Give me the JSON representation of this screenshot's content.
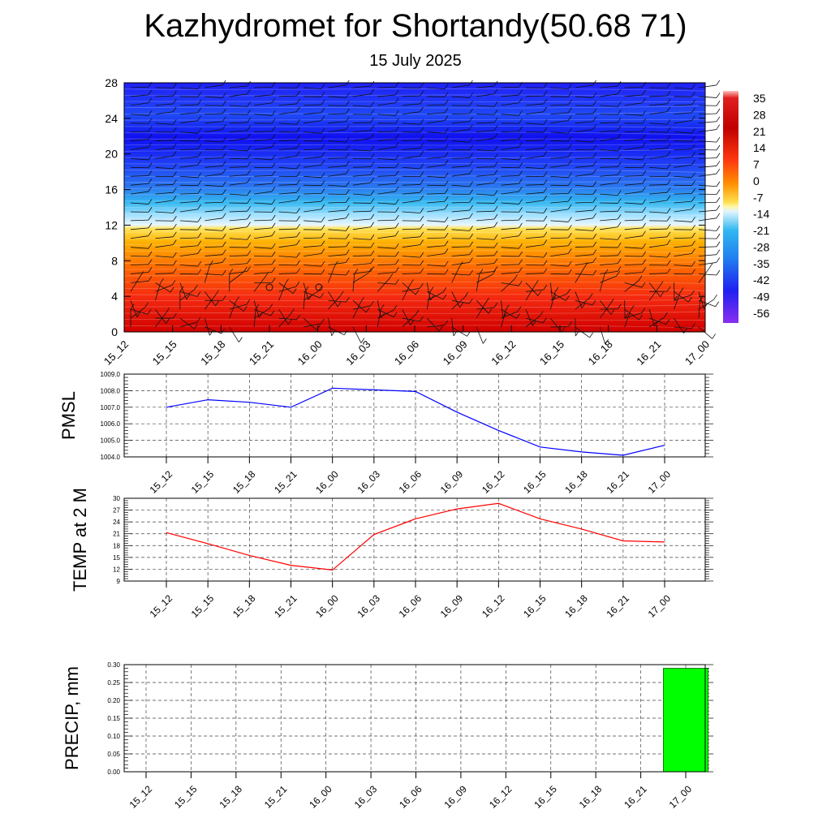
{
  "title": "Kazhydromet for Shortandy(50.68 71)",
  "subtitle": "15 July 2025",
  "time_labels": [
    "15_12",
    "15_15",
    "15_18",
    "15_21",
    "16_00",
    "16_03",
    "16_06",
    "16_09",
    "16_12",
    "16_15",
    "16_18",
    "16_21",
    "17_00"
  ],
  "chart_data": [
    {
      "type": "heatmap",
      "title": "",
      "ylim": [
        0,
        28
      ],
      "yticks": [
        "0",
        "4",
        "8",
        "12",
        "16",
        "20",
        "24",
        "28"
      ],
      "x_labels": [
        "15_12",
        "15_15",
        "15_18",
        "15_21",
        "16_00",
        "16_03",
        "16_06",
        "16_09",
        "16_12",
        "16_15",
        "16_18",
        "16_21",
        "17_00"
      ],
      "colorbar_labels": [
        "35",
        "28",
        "21",
        "14",
        "7",
        "0",
        "-7",
        "-14",
        "-21",
        "-28",
        "-35",
        "-42",
        "-49",
        "-56"
      ],
      "overlay": "wind barbs"
    },
    {
      "type": "line",
      "ylabel": "PMSL",
      "ylim": [
        1004.0,
        1009.0
      ],
      "yticks": [
        "1004.0",
        "1005.0",
        "1006.0",
        "1007.0",
        "1008.0",
        "1009.0"
      ],
      "x": [
        "15_12",
        "15_15",
        "15_18",
        "15_21",
        "16_00",
        "16_03",
        "16_06",
        "16_09",
        "16_12",
        "16_15",
        "16_18",
        "16_21",
        "17_00"
      ],
      "values": [
        1007.0,
        1007.45,
        1007.3,
        1007.0,
        1008.15,
        1008.05,
        1007.95,
        1006.7,
        1005.6,
        1004.6,
        1004.3,
        1004.1,
        1004.7
      ],
      "color": "#0000ff"
    },
    {
      "type": "line",
      "ylabel": "TEMP at 2 M",
      "ylim": [
        9,
        30
      ],
      "yticks": [
        "9",
        "12",
        "15",
        "18",
        "21",
        "24",
        "27",
        "30"
      ],
      "x": [
        "15_12",
        "15_15",
        "15_18",
        "15_21",
        "16_00",
        "16_03",
        "16_06",
        "16_09",
        "16_12",
        "16_15",
        "16_18",
        "16_21",
        "17_00"
      ],
      "values": [
        21.3,
        18.5,
        15.5,
        13.0,
        11.8,
        20.8,
        24.8,
        27.3,
        28.7,
        24.8,
        22.2,
        19.2,
        18.9
      ],
      "color": "#ff0000"
    },
    {
      "type": "bar",
      "ylabel": "PRECIP, mm",
      "ylim": [
        0,
        0.3
      ],
      "yticks": [
        "0.00",
        "0.05",
        "0.10",
        "0.15",
        "0.20",
        "0.25",
        "0.30"
      ],
      "categories": [
        "15_12",
        "15_15",
        "15_18",
        "15_21",
        "16_00",
        "16_03",
        "16_06",
        "16_09",
        "16_12",
        "16_15",
        "16_18",
        "16_21",
        "17_00"
      ],
      "values": [
        0,
        0,
        0,
        0,
        0,
        0,
        0,
        0,
        0,
        0,
        0,
        0,
        0.29
      ],
      "color": "#00ff00"
    }
  ]
}
